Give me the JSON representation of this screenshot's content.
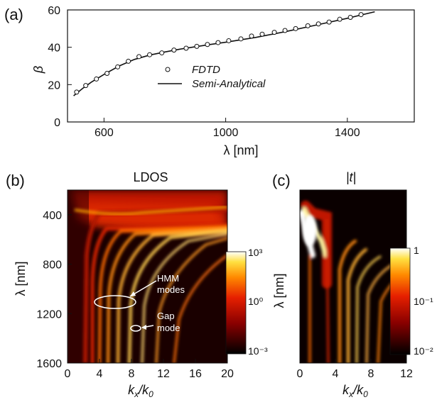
{
  "chart_data": [
    {
      "id": "a",
      "type": "line",
      "panel_label": "(a)",
      "xlabel": "λ [nm]",
      "ylabel": "β",
      "xlim": [
        480,
        1620
      ],
      "ylim": [
        0,
        60
      ],
      "xticks": [
        600,
        1000,
        1400
      ],
      "yticks": [
        0,
        20,
        40,
        60
      ],
      "xtick_labels": [
        "600",
        "1000",
        "1400"
      ],
      "ytick_labels": [
        "0",
        "20",
        "40",
        "60"
      ],
      "legend_position": "center",
      "series": [
        {
          "name": "FDTD",
          "style": "markers-open-circle",
          "x": [
            510,
            540,
            575,
            610,
            645,
            680,
            715,
            750,
            790,
            830,
            870,
            905,
            940,
            975,
            1010,
            1050,
            1085,
            1120,
            1160,
            1195,
            1230,
            1270,
            1305,
            1340,
            1375,
            1410,
            1445
          ],
          "y": [
            16,
            19.5,
            23,
            26,
            29.5,
            32.5,
            35,
            36,
            37,
            38.5,
            39.5,
            40.5,
            41.5,
            42.5,
            43.5,
            44.5,
            46,
            47,
            48,
            49,
            50,
            51.5,
            52.5,
            53.5,
            55,
            56,
            57.5
          ]
        },
        {
          "name": "Semi-Analytical",
          "style": "solid-line",
          "x": [
            500,
            530,
            560,
            600,
            650,
            700,
            750,
            800,
            850,
            900,
            950,
            1000,
            1100,
            1200,
            1300,
            1400,
            1490
          ],
          "y": [
            14,
            18,
            21.5,
            25.5,
            30,
            33.5,
            35.8,
            37.5,
            39,
            40.3,
            41.5,
            42.7,
            45.3,
            48.5,
            52,
            55.5,
            59
          ]
        }
      ]
    },
    {
      "id": "b",
      "type": "heatmap",
      "panel_label": "(b)",
      "title": "LDOS",
      "xlabel": "kx/k0",
      "ylabel": "λ [nm]",
      "xlim": [
        0,
        20
      ],
      "ylim": [
        1600,
        200
      ],
      "xticks": [
        0,
        4,
        8,
        12,
        16,
        20
      ],
      "yticks": [
        400,
        800,
        1200,
        1600
      ],
      "xtick_labels": [
        "0",
        "4",
        "8",
        "12",
        "16",
        "20"
      ],
      "ytick_labels": [
        "400",
        "800",
        "1200",
        "1600"
      ],
      "colorbar": {
        "ticks": [
          "10³",
          "10⁰",
          "10⁻³"
        ],
        "scale": "log"
      },
      "annotations": [
        {
          "text": "HMM",
          "text2": "modes",
          "x": 5.5,
          "y": 1090
        },
        {
          "text": "Gap",
          "text2": "mode",
          "x": 8.2,
          "y": 1300
        }
      ]
    },
    {
      "id": "c",
      "type": "heatmap",
      "panel_label": "(c)",
      "title": "|t|",
      "xlabel": "kx/k0",
      "ylabel": "λ [nm]",
      "xlim": [
        0,
        12
      ],
      "ylim": [
        1600,
        200
      ],
      "xticks": [
        0,
        4,
        8,
        12
      ],
      "xtick_labels": [
        "0",
        "4",
        "8",
        "12"
      ],
      "colorbar": {
        "ticks": [
          "1",
          "10⁻¹",
          "10⁻²"
        ],
        "scale": "log"
      }
    }
  ]
}
